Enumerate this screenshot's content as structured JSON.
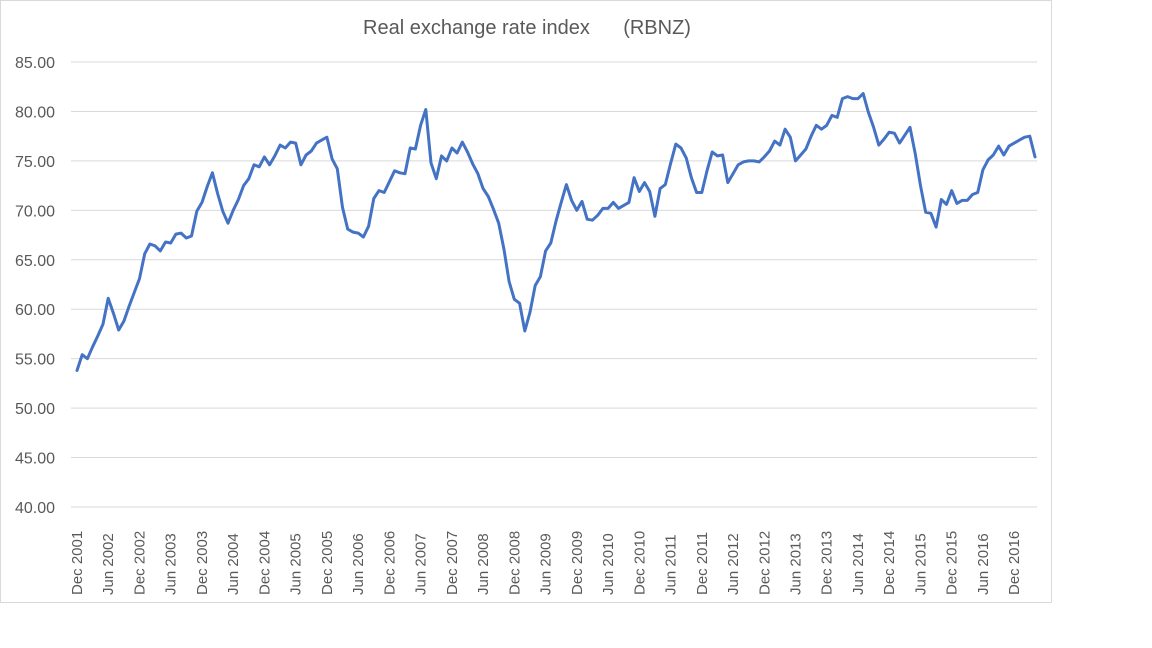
{
  "chart_data": {
    "type": "line",
    "title": "Real exchange rate index      (RBNZ)",
    "xlabel": "",
    "ylabel": "",
    "ylim": [
      40,
      85
    ],
    "yticks": [
      "40.00",
      "45.00",
      "50.00",
      "55.00",
      "60.00",
      "65.00",
      "70.00",
      "75.00",
      "80.00",
      "85.00"
    ],
    "xtick_labels": [
      "Dec 2001",
      "Jun 2002",
      "Dec 2002",
      "Jun 2003",
      "Dec 2003",
      "Jun 2004",
      "Dec 2004",
      "Jun 2005",
      "Dec 2005",
      "Jun 2006",
      "Dec 2006",
      "Jun 2007",
      "Dec 2007",
      "Jun 2008",
      "Dec 2008",
      "Jun 2009",
      "Dec 2009",
      "Jun 2010",
      "Dec 2010",
      "Jun 2011",
      "Dec 2011",
      "Jun 2012",
      "Dec 2012",
      "Jun 2013",
      "Dec 2013",
      "Jun 2014",
      "Dec 2014",
      "Jun 2015",
      "Dec 2015",
      "Jun 2016",
      "Dec 2016"
    ],
    "grid": true,
    "legend": "none",
    "line_color": "#4472c4",
    "series": [
      {
        "name": "Real exchange rate index",
        "values": [
          53.8,
          55.4,
          55.0,
          56.2,
          57.3,
          58.5,
          61.1,
          59.6,
          57.9,
          58.8,
          60.3,
          61.7,
          63.1,
          65.6,
          66.6,
          66.4,
          65.9,
          66.8,
          66.7,
          67.6,
          67.7,
          67.2,
          67.4,
          69.9,
          70.8,
          72.4,
          73.8,
          71.7,
          69.9,
          68.7,
          70.0,
          71.1,
          72.5,
          73.2,
          74.6,
          74.4,
          75.4,
          74.6,
          75.5,
          76.6,
          76.3,
          76.9,
          76.8,
          74.6,
          75.6,
          76.0,
          76.8,
          77.1,
          77.4,
          75.2,
          74.2,
          70.3,
          68.1,
          67.8,
          67.7,
          67.3,
          68.4,
          71.2,
          72.0,
          71.8,
          72.9,
          74.0,
          73.8,
          73.7,
          76.3,
          76.2,
          78.6,
          80.2,
          74.8,
          73.2,
          75.5,
          75.0,
          76.3,
          75.8,
          76.9,
          75.9,
          74.7,
          73.7,
          72.2,
          71.4,
          70.1,
          68.7,
          66.1,
          62.8,
          61.0,
          60.6,
          57.8,
          59.7,
          62.4,
          63.3,
          65.9,
          66.7,
          68.9,
          70.8,
          72.6,
          71.0,
          70.0,
          70.9,
          69.1,
          69.0,
          69.5,
          70.2,
          70.2,
          70.8,
          70.2,
          70.5,
          70.8,
          73.3,
          71.9,
          72.8,
          71.9,
          69.4,
          72.2,
          72.6,
          74.7,
          76.7,
          76.3,
          75.3,
          73.3,
          71.8,
          71.8,
          74.0,
          75.9,
          75.5,
          75.6,
          72.8,
          73.7,
          74.6,
          74.9,
          75.0,
          75.0,
          74.9,
          75.4,
          76.0,
          77.0,
          76.6,
          78.2,
          77.4,
          75.0,
          75.6,
          76.2,
          77.5,
          78.6,
          78.2,
          78.6,
          79.6,
          79.4,
          81.3,
          81.5,
          81.3,
          81.3,
          81.8,
          79.9,
          78.4,
          76.6,
          77.2,
          77.9,
          77.8,
          76.8,
          77.6,
          78.4,
          75.7,
          72.5,
          69.8,
          69.7,
          68.3,
          71.1,
          70.6,
          72.0,
          70.7,
          71.0,
          71.0,
          71.6,
          71.8,
          74.1,
          75.1,
          75.6,
          76.5,
          75.6,
          76.5,
          76.8,
          77.1,
          77.4,
          77.5,
          75.4
        ]
      }
    ]
  }
}
